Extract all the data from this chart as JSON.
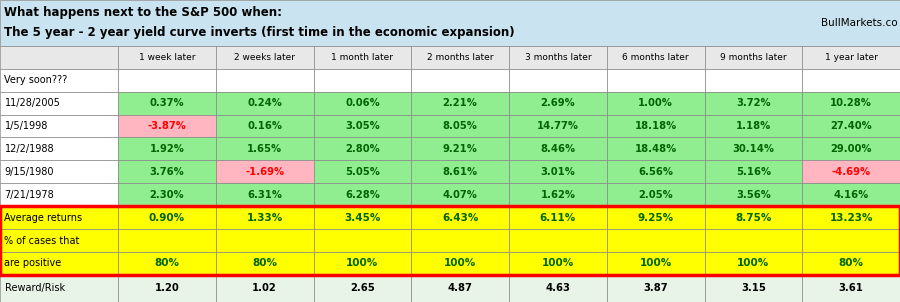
{
  "title_line1": "What happens next to the S&P 500 when:",
  "title_line2": "The 5 year - 2 year yield curve inverts (first time in the economic expansion)",
  "watermark": "BullMarkets.co",
  "col_headers": [
    "1 week later",
    "2 weeks later",
    "1 month later",
    "2 months later",
    "3 months later",
    "6 months later",
    "9 months later",
    "1 year later"
  ],
  "row_labels": [
    "Very soon???",
    "11/28/2005",
    "1/5/1998",
    "12/2/1988",
    "9/15/1980",
    "7/21/1978"
  ],
  "data": [
    [
      "",
      "",
      "",
      "",
      "",
      "",
      "",
      ""
    ],
    [
      "0.37%",
      "0.24%",
      "0.06%",
      "2.21%",
      "2.69%",
      "1.00%",
      "3.72%",
      "10.28%"
    ],
    [
      "-3.87%",
      "0.16%",
      "3.05%",
      "8.05%",
      "14.77%",
      "18.18%",
      "1.18%",
      "27.40%"
    ],
    [
      "1.92%",
      "1.65%",
      "2.80%",
      "9.21%",
      "8.46%",
      "18.48%",
      "30.14%",
      "29.00%"
    ],
    [
      "3.76%",
      "-1.69%",
      "5.05%",
      "8.61%",
      "3.01%",
      "6.56%",
      "5.16%",
      "-4.69%"
    ],
    [
      "2.30%",
      "6.31%",
      "6.28%",
      "4.07%",
      "1.62%",
      "2.05%",
      "3.56%",
      "4.16%"
    ]
  ],
  "avg_returns": [
    "0.90%",
    "1.33%",
    "3.45%",
    "6.43%",
    "6.11%",
    "9.25%",
    "8.75%",
    "13.23%"
  ],
  "pct_positive": [
    "80%",
    "80%",
    "100%",
    "100%",
    "100%",
    "100%",
    "100%",
    "80%"
  ],
  "reward_risk": [
    "1.20",
    "1.02",
    "2.65",
    "4.87",
    "4.63",
    "3.87",
    "3.15",
    "3.61"
  ],
  "cell_colors": [
    [
      "white",
      "white",
      "white",
      "white",
      "white",
      "white",
      "white",
      "white"
    ],
    [
      "#90EE90",
      "#90EE90",
      "#90EE90",
      "#90EE90",
      "#90EE90",
      "#90EE90",
      "#90EE90",
      "#90EE90"
    ],
    [
      "#FFB6C1",
      "#90EE90",
      "#90EE90",
      "#90EE90",
      "#90EE90",
      "#90EE90",
      "#90EE90",
      "#90EE90"
    ],
    [
      "#90EE90",
      "#90EE90",
      "#90EE90",
      "#90EE90",
      "#90EE90",
      "#90EE90",
      "#90EE90",
      "#90EE90"
    ],
    [
      "#90EE90",
      "#FFB6C1",
      "#90EE90",
      "#90EE90",
      "#90EE90",
      "#90EE90",
      "#90EE90",
      "#FFB6C1"
    ],
    [
      "#90EE90",
      "#90EE90",
      "#90EE90",
      "#90EE90",
      "#90EE90",
      "#90EE90",
      "#90EE90",
      "#90EE90"
    ]
  ],
  "text_colors": [
    [
      "black",
      "black",
      "black",
      "black",
      "black",
      "black",
      "black",
      "black"
    ],
    [
      "#006400",
      "#006400",
      "#006400",
      "#006400",
      "#006400",
      "#006400",
      "#006400",
      "#006400"
    ],
    [
      "red",
      "#006400",
      "#006400",
      "#006400",
      "#006400",
      "#006400",
      "#006400",
      "#006400"
    ],
    [
      "#006400",
      "#006400",
      "#006400",
      "#006400",
      "#006400",
      "#006400",
      "#006400",
      "#006400"
    ],
    [
      "#006400",
      "red",
      "#006400",
      "#006400",
      "#006400",
      "#006400",
      "#006400",
      "red"
    ],
    [
      "#006400",
      "#006400",
      "#006400",
      "#006400",
      "#006400",
      "#006400",
      "#006400",
      "#006400"
    ]
  ],
  "title_bg": "#C9E4F0",
  "header_bg": "#E8E8E8",
  "data_label_bg": "white",
  "yellow_bg": "#FFFF00",
  "reward_bg": "#E8F4E8",
  "border_color": "#888888",
  "red_border": "red"
}
